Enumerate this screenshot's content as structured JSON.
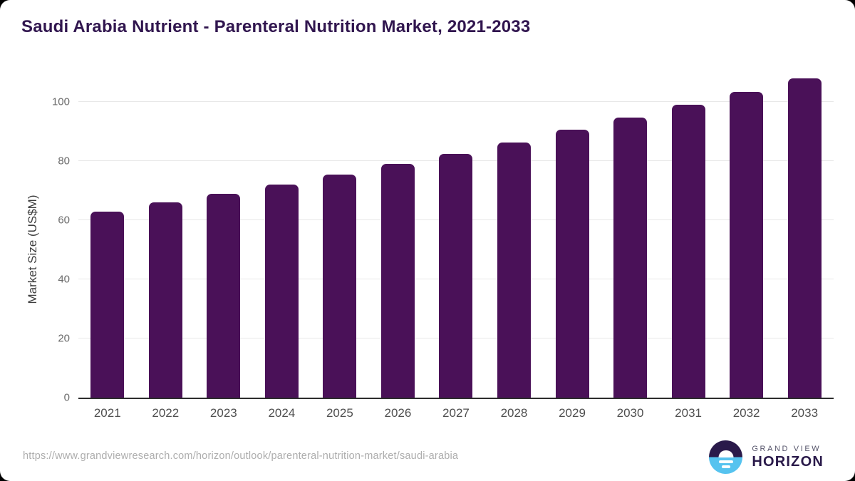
{
  "header": {
    "title": "Saudi Arabia Nutrient - Parenteral Nutrition Market, 2021-2033"
  },
  "chart_data": {
    "type": "bar",
    "title": "Saudi Arabia Nutrient - Parenteral Nutrition Market, 2021-2033",
    "categories": [
      "2021",
      "2022",
      "2023",
      "2024",
      "2025",
      "2026",
      "2027",
      "2028",
      "2029",
      "2030",
      "2031",
      "2032",
      "2033"
    ],
    "values": [
      63,
      66,
      69,
      72,
      75.5,
      79,
      82.5,
      86.3,
      90.5,
      94.7,
      99,
      103.3,
      108
    ],
    "ylabel": "Market Size (US$M)",
    "xlabel": "",
    "yticks": [
      0,
      20,
      40,
      60,
      80,
      100
    ],
    "ylim": [
      0,
      110
    ],
    "grid": true,
    "legend": false,
    "bar_color": "#4A1158"
  },
  "footer": {
    "source_url": "https://www.grandviewresearch.com/horizon/outlook/parenteral-nutrition-market/saudi-arabia",
    "logo": {
      "line1": "GRAND VIEW",
      "line2": "HORIZON",
      "icon": "horizon-sunrise-icon",
      "purple": "#2A1A4A",
      "blue": "#56C3EF"
    }
  },
  "colors": {
    "title_text": "#31164F",
    "bar": "#4A1158",
    "grid_line": "#E8E8E8",
    "baseline": "#2D2D2D",
    "axis_text": "#4F4F4F",
    "tick_text": "#6B6B6B",
    "url_text": "#ADADAD",
    "card_background": "#FFFFFF",
    "frame_background": "#000000"
  }
}
